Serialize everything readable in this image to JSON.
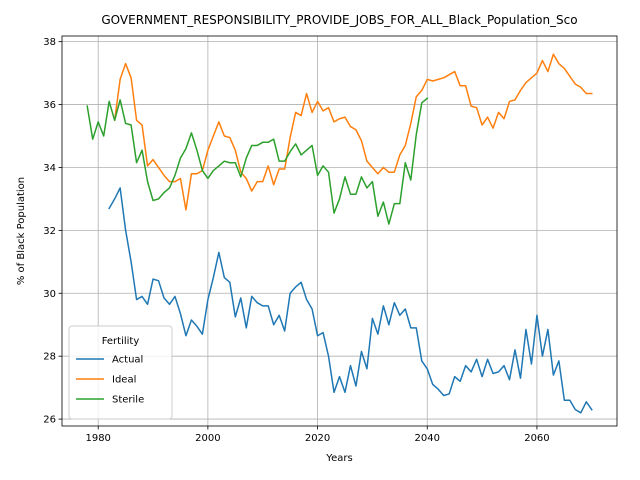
{
  "chart_data": {
    "type": "line",
    "title": "GOVERNMENT_RESPONSIBILITY_PROVIDE_JOBS_FOR_ALL_Black_Population_Sco",
    "xlabel": "Years",
    "ylabel": "% of Black Population",
    "xlim": [
      1973.4,
      2074.6
    ],
    "ylim": [
      25.78,
      38.18
    ],
    "xticks": [
      1980,
      2000,
      2020,
      2040,
      2060
    ],
    "yticks": [
      26,
      28,
      30,
      32,
      34,
      36,
      38
    ],
    "grid": true,
    "legend": {
      "title": "Fertility",
      "placement": "lower-left"
    },
    "series": [
      {
        "name": "Actual",
        "color": "#1f77b4",
        "x": [
          1982,
          1983,
          1984,
          1985,
          1986,
          1987,
          1988,
          1989,
          1990,
          1991,
          1992,
          1993,
          1994,
          1995,
          1996,
          1997,
          1998,
          1999,
          2000,
          2001,
          2002,
          2003,
          2004,
          2005,
          2006,
          2007,
          2008,
          2009,
          2010,
          2011,
          2012,
          2013,
          2014,
          2015,
          2016,
          2017,
          2018,
          2019,
          2020,
          2021,
          2022,
          2023,
          2024,
          2025,
          2026,
          2027,
          2028,
          2029,
          2030,
          2031,
          2032,
          2033,
          2034,
          2035,
          2036,
          2037,
          2038,
          2039,
          2040,
          2041,
          2042,
          2043,
          2044,
          2045,
          2046,
          2047,
          2048,
          2049,
          2050,
          2051,
          2052,
          2053,
          2054,
          2055,
          2056,
          2057,
          2058,
          2059,
          2060,
          2061,
          2062,
          2063,
          2064,
          2065,
          2066,
          2067,
          2068,
          2069,
          2070
        ],
        "values": [
          32.7,
          33.0,
          33.35,
          32.0,
          31.0,
          29.8,
          29.9,
          29.65,
          30.45,
          30.4,
          29.85,
          29.65,
          29.9,
          29.35,
          28.65,
          29.15,
          28.95,
          28.7,
          29.8,
          30.5,
          31.3,
          30.5,
          30.35,
          29.25,
          29.85,
          28.9,
          29.9,
          29.7,
          29.6,
          29.6,
          29.0,
          29.3,
          28.8,
          30.0,
          30.2,
          30.35,
          29.8,
          29.5,
          28.65,
          28.75,
          28.0,
          26.85,
          27.35,
          26.85,
          27.7,
          27.05,
          28.15,
          27.6,
          29.2,
          28.7,
          29.6,
          29.0,
          29.7,
          29.3,
          29.5,
          28.9,
          28.9,
          27.85,
          27.6,
          27.1,
          26.95,
          26.75,
          26.8,
          27.35,
          27.2,
          27.7,
          27.5,
          27.9,
          27.35,
          27.9,
          27.45,
          27.5,
          27.7,
          27.25,
          28.2,
          27.3,
          28.85,
          27.75,
          29.3,
          28.0,
          28.85,
          27.4,
          27.85,
          26.6,
          26.6,
          26.3,
          26.2,
          26.55,
          26.3
        ]
      },
      {
        "name": "Ideal",
        "color": "#ff7f0e",
        "x": [
          1983,
          1984,
          1985,
          1986,
          1987,
          1988,
          1989,
          1990,
          1991,
          1992,
          1993,
          1994,
          1995,
          1996,
          1997,
          1998,
          1999,
          2000,
          2001,
          2002,
          2003,
          2004,
          2005,
          2006,
          2007,
          2008,
          2009,
          2010,
          2011,
          2012,
          2013,
          2014,
          2015,
          2016,
          2017,
          2018,
          2019,
          2020,
          2021,
          2022,
          2023,
          2024,
          2025,
          2026,
          2027,
          2028,
          2029,
          2030,
          2031,
          2032,
          2033,
          2034,
          2035,
          2036,
          2037,
          2038,
          2039,
          2040,
          2041,
          2042,
          2043,
          2044,
          2045,
          2046,
          2047,
          2048,
          2049,
          2050,
          2051,
          2052,
          2053,
          2054,
          2055,
          2056,
          2057,
          2058,
          2059,
          2060,
          2061,
          2062,
          2063,
          2064,
          2065,
          2066,
          2067,
          2068,
          2069,
          2070
        ],
        "values": [
          35.5,
          36.8,
          37.3,
          36.85,
          35.5,
          35.35,
          34.05,
          34.25,
          34.0,
          33.75,
          33.55,
          33.55,
          33.65,
          32.65,
          33.8,
          33.8,
          33.9,
          34.55,
          35.0,
          35.45,
          35.0,
          34.95,
          34.55,
          33.85,
          33.65,
          33.25,
          33.55,
          33.55,
          34.05,
          33.45,
          33.95,
          33.95,
          34.95,
          35.75,
          35.65,
          36.35,
          35.75,
          36.1,
          35.8,
          35.9,
          35.45,
          35.55,
          35.6,
          35.3,
          35.2,
          34.85,
          34.2,
          34.0,
          33.8,
          34.0,
          33.85,
          33.85,
          34.4,
          34.7,
          35.4,
          36.25,
          36.45,
          36.8,
          36.75,
          36.8,
          36.85,
          36.95,
          37.05,
          36.6,
          36.6,
          35.95,
          35.9,
          35.35,
          35.6,
          35.25,
          35.75,
          35.55,
          36.1,
          36.15,
          36.45,
          36.7,
          36.85,
          37.0,
          37.4,
          37.05,
          37.6,
          37.3,
          37.15,
          36.9,
          36.65,
          36.55,
          36.35,
          36.35
        ]
      },
      {
        "name": "Sterile",
        "color": "#2ca02c",
        "x": [
          1978,
          1979,
          1980,
          1981,
          1982,
          1983,
          1984,
          1985,
          1986,
          1987,
          1988,
          1989,
          1990,
          1991,
          1992,
          1993,
          1994,
          1995,
          1996,
          1997,
          1998,
          1999,
          2000,
          2001,
          2002,
          2003,
          2004,
          2005,
          2006,
          2007,
          2008,
          2009,
          2010,
          2011,
          2012,
          2013,
          2014,
          2015,
          2016,
          2017,
          2018,
          2019,
          2020,
          2021,
          2022,
          2023,
          2024,
          2025,
          2026,
          2027,
          2028,
          2029,
          2030,
          2031,
          2032,
          2033,
          2034,
          2035,
          2036,
          2037,
          2038,
          2039,
          2040
        ],
        "values": [
          35.95,
          34.9,
          35.45,
          35.0,
          36.1,
          35.5,
          36.15,
          35.4,
          35.35,
          34.15,
          34.55,
          33.55,
          32.95,
          33.0,
          33.2,
          33.35,
          33.75,
          34.3,
          34.6,
          35.1,
          34.55,
          33.9,
          33.65,
          33.9,
          34.05,
          34.2,
          34.15,
          34.15,
          33.7,
          34.3,
          34.7,
          34.7,
          34.8,
          34.8,
          34.9,
          34.2,
          34.2,
          34.5,
          34.75,
          34.4,
          34.55,
          34.7,
          33.75,
          34.05,
          33.85,
          32.55,
          33.0,
          33.7,
          33.15,
          33.15,
          33.7,
          33.35,
          33.55,
          32.45,
          32.9,
          32.2,
          32.85,
          32.85,
          34.15,
          33.6,
          35.05,
          36.05,
          36.2
        ]
      }
    ]
  }
}
